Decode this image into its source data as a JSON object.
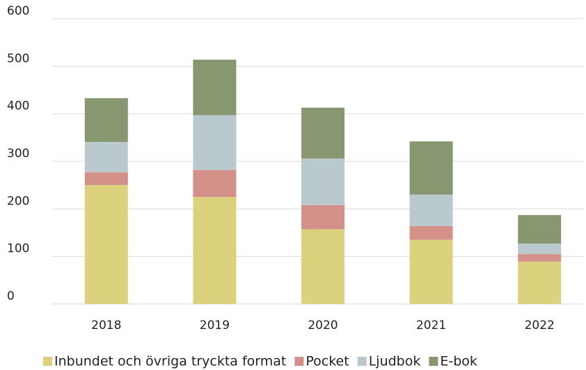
{
  "chart_data": {
    "type": "stacked_bar",
    "categories": [
      "2018",
      "2019",
      "2020",
      "2021",
      "2022"
    ],
    "series": [
      {
        "name": "Inbundet och övriga tryckta format",
        "color": "#dcd27e",
        "values": [
          250,
          225,
          157,
          135,
          89
        ]
      },
      {
        "name": "Pocket",
        "color": "#d4918a",
        "values": [
          27,
          57,
          51,
          29,
          16
        ]
      },
      {
        "name": "Ljudbok",
        "color": "#b9c9ce",
        "values": [
          64,
          115,
          98,
          66,
          22
        ]
      },
      {
        "name": "E-bok",
        "color": "#879870",
        "values": [
          92,
          117,
          107,
          112,
          60
        ]
      }
    ],
    "ylim": [
      0,
      600
    ],
    "yticks": [
      0,
      100,
      200,
      300,
      400,
      500,
      600
    ],
    "grid": true,
    "legend": "bottom"
  }
}
